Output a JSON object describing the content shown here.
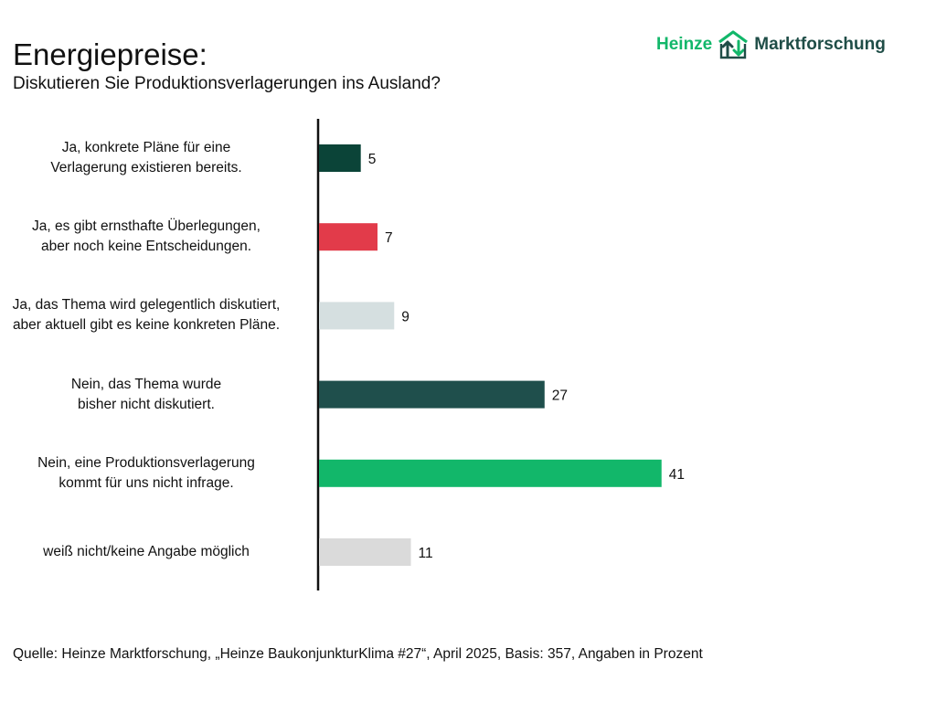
{
  "header": {
    "title": "Energiepreise:",
    "subtitle": "Diskutieren Sie Produktionsverlagerungen ins Ausland?"
  },
  "logo": {
    "brand": "Heinze",
    "word": "Marktforschung",
    "icon": "heinze-arrows-icon",
    "brand_color": "#12b76a",
    "word_color": "#1f4d47"
  },
  "chart_data": {
    "type": "bar",
    "orientation": "horizontal",
    "title": "Diskutieren Sie Produktionsverlagerungen ins Ausland?",
    "xlabel": "",
    "ylabel": "",
    "xlim": [
      0,
      55
    ],
    "grid": false,
    "legend": "none",
    "unit": "Prozent",
    "categories": [
      {
        "line1": "Ja, konkrete Pläne für eine",
        "line2": "Verlagerung existieren bereits."
      },
      {
        "line1": "Ja, es gibt ernsthafte Überlegungen,",
        "line2": "aber noch keine Entscheidungen."
      },
      {
        "line1": "Ja, das Thema wird gelegentlich diskutiert,",
        "line2": "aber aktuell gibt es keine konkreten Pläne."
      },
      {
        "line1": "Nein, das Thema wurde",
        "line2": "bisher nicht diskutiert."
      },
      {
        "line1": "Nein, eine Produktionsverlagerung",
        "line2": "kommt für uns nicht infrage."
      },
      {
        "line1": "weiß nicht/keine Angabe möglich",
        "line2": ""
      }
    ],
    "values": [
      5,
      7,
      9,
      27,
      41,
      11
    ],
    "colors": [
      "#0b4438",
      "#e23b4a",
      "#d5dfe0",
      "#1f4f4c",
      "#12b76a",
      "#dadada"
    ]
  },
  "footer": {
    "source": "Quelle: Heinze Marktforschung, „Heinze BaukonjunkturKlima #27“, April 2025, Basis: 357, Angaben in Prozent"
  }
}
